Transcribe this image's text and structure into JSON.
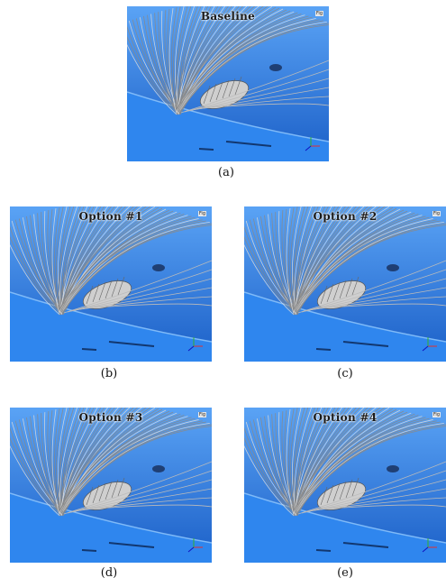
{
  "panels": [
    {
      "id": "a",
      "title": "Baseline",
      "badge": "Fig",
      "caption": "(a)"
    },
    {
      "id": "b",
      "title": "Option #1",
      "badge": "Fig",
      "caption": "(b)"
    },
    {
      "id": "c",
      "title": "Option #2",
      "badge": "Fig",
      "caption": "(c)"
    },
    {
      "id": "d",
      "title": "Option #3",
      "badge": "Fig",
      "caption": "(d)"
    },
    {
      "id": "e",
      "title": "Option #4",
      "badge": "Fig",
      "caption": "(e)"
    }
  ],
  "colors": {
    "surface_blue": "#2f86ee",
    "surface_dark": "#1b5fc7",
    "streamline_gray": "#8a8a8a",
    "streamline_light": "#d8d8d8"
  }
}
